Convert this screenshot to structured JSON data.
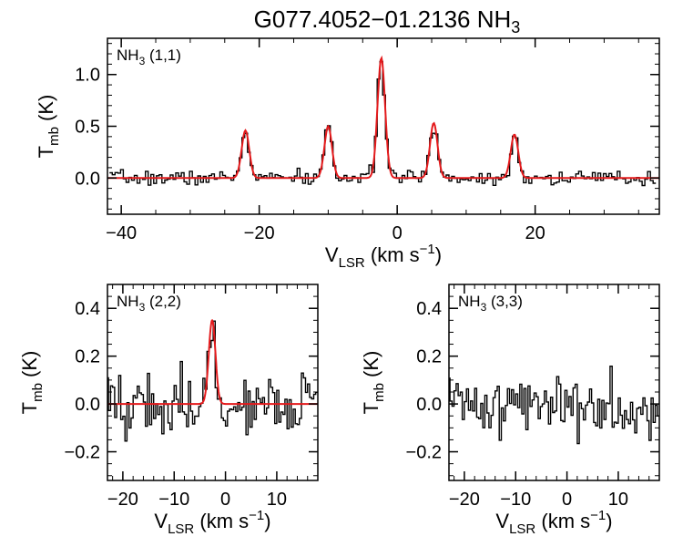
{
  "title": {
    "main": "G077.4052−01.2136 NH",
    "sub": "3"
  },
  "colors": {
    "spectrum": "#000000",
    "fit": "#e41a1c",
    "axis": "#000000"
  },
  "chart_data": [
    {
      "type": "line",
      "id": "p11",
      "label": {
        "main": "NH",
        "sub": "3",
        "rest": " (1,1)"
      },
      "xlabel": {
        "main": "V",
        "sub": "LSR",
        "rest": " (km s",
        "sup": "−1",
        "end": ")"
      },
      "ylabel": {
        "main": "T",
        "sub": "mb",
        "rest": " (K)"
      },
      "xlim": [
        -42,
        38
      ],
      "ylim": [
        -0.35,
        1.35
      ],
      "xticks": [
        -40,
        -20,
        0,
        20
      ],
      "xtick_labels": [
        "−40",
        "−20",
        "0",
        "20"
      ],
      "yticks": [
        0.0,
        0.5,
        1.0
      ],
      "ytick_labels": [
        "0.0",
        "0.5",
        "1.0"
      ],
      "x_minor_step": 5,
      "y_minor_step": 0.1,
      "spectrum": {
        "x_start": -41.5,
        "x_end": 37.5,
        "step": 0.4,
        "noise": 0.035,
        "seed": 7
      },
      "fit": {
        "width": 0.55,
        "peaks": [
          {
            "v": -22.0,
            "amp": 0.46
          },
          {
            "v": -10.0,
            "amp": 0.5
          },
          {
            "v": -2.3,
            "amp": 1.16
          },
          {
            "v": 5.3,
            "amp": 0.53
          },
          {
            "v": 17.0,
            "amp": 0.42
          }
        ]
      }
    },
    {
      "type": "line",
      "id": "p22",
      "label": {
        "main": "NH",
        "sub": "3",
        "rest": " (2,2)"
      },
      "xlabel": {
        "main": "V",
        "sub": "LSR",
        "rest": " (km s",
        "sup": "−1",
        "end": ")"
      },
      "ylabel": {
        "main": "T",
        "sub": "mb",
        "rest": " (K)"
      },
      "xlim": [
        -23,
        18
      ],
      "ylim": [
        -0.32,
        0.5
      ],
      "xticks": [
        -20,
        -10,
        0,
        10
      ],
      "xtick_labels": [
        "−20",
        "−10",
        "0",
        "10"
      ],
      "yticks": [
        -0.2,
        0.0,
        0.2,
        0.4
      ],
      "ytick_labels": [
        "−0.2",
        "0.0",
        "0.2",
        "0.4"
      ],
      "x_minor_step": 2,
      "y_minor_step": 0.05,
      "spectrum": {
        "x_start": -23,
        "x_end": 18,
        "step": 0.4,
        "noise": 0.065,
        "seed": 19
      },
      "fit": {
        "width": 0.65,
        "peaks": [
          {
            "v": -2.6,
            "amp": 0.35
          }
        ]
      }
    },
    {
      "type": "line",
      "id": "p33",
      "label": {
        "main": "NH",
        "sub": "3",
        "rest": " (3,3)"
      },
      "xlabel": {
        "main": "V",
        "sub": "LSR",
        "rest": " (km s",
        "sup": "−1",
        "end": ")"
      },
      "ylabel": {
        "main": "T",
        "sub": "mb",
        "rest": " (K)"
      },
      "xlim": [
        -23,
        18
      ],
      "ylim": [
        -0.32,
        0.5
      ],
      "xticks": [
        -20,
        -10,
        0,
        10
      ],
      "xtick_labels": [
        "−20",
        "−10",
        "0",
        "10"
      ],
      "yticks": [
        -0.2,
        0.0,
        0.2,
        0.4
      ],
      "ytick_labels": [
        "−0.2",
        "0.0",
        "0.2",
        "0.4"
      ],
      "x_minor_step": 2,
      "y_minor_step": 0.05,
      "spectrum": {
        "x_start": -23,
        "x_end": 18,
        "step": 0.4,
        "noise": 0.065,
        "seed": 41
      },
      "fit": null
    }
  ]
}
